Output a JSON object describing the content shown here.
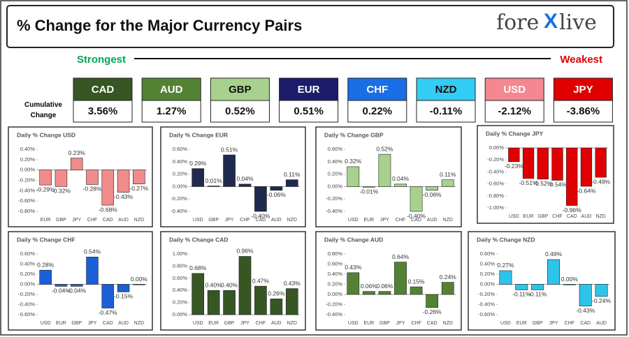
{
  "header": {
    "title": "% Change for the Major Currency Pairs",
    "logo": {
      "left": "fore",
      "mark": "X",
      "right": "live"
    }
  },
  "strength": {
    "strongest": "Strongest",
    "weakest": "Weakest",
    "label": "Cumulative Change",
    "currencies": [
      {
        "name": "CAD",
        "value": "3.56%",
        "color": "#375623"
      },
      {
        "name": "AUD",
        "value": "1.27%",
        "color": "#548235"
      },
      {
        "name": "GBP",
        "value": "0.52%",
        "color": "#a9d18e"
      },
      {
        "name": "EUR",
        "value": "0.51%",
        "color": "#1c1c6b"
      },
      {
        "name": "CHF",
        "value": "0.22%",
        "color": "#1a6ee6"
      },
      {
        "name": "NZD",
        "value": "-0.11%",
        "color": "#33ccf5"
      },
      {
        "name": "USD",
        "value": "-2.12%",
        "color": "#f4878f"
      },
      {
        "name": "JPY",
        "value": "-3.86%",
        "color": "#e00000"
      }
    ]
  },
  "chart_data": [
    {
      "type": "bar",
      "title": "Daily % Change USD",
      "color": "#f28b8b",
      "categories": [
        "EUR",
        "GBP",
        "JPY",
        "CHF",
        "CAD",
        "AUD",
        "NZD"
      ],
      "values": [
        -0.29,
        -0.32,
        0.23,
        -0.28,
        -0.68,
        -0.43,
        -0.27
      ],
      "value_labels": [
        "-0.29%",
        "-0.32%",
        "0.23%",
        "-0.28%",
        "-0.68%",
        "-0.43%",
        "-0.27%"
      ],
      "ylim": [
        -0.8,
        0.4
      ],
      "yticks": [
        {
          "value": 0.4,
          "label": "0.40%"
        },
        {
          "value": 0.2,
          "label": "0.20%"
        },
        {
          "value": 0,
          "label": "0.00%"
        },
        {
          "value": -0.2,
          "label": "-0.20%"
        },
        {
          "value": -0.4,
          "label": "-0.40%"
        },
        {
          "value": -0.6,
          "label": "-0.60%"
        },
        {
          "value": -0.8,
          "label": "-0.80%"
        }
      ]
    },
    {
      "type": "bar",
      "title": "Daily % Change EUR",
      "color": "#1f2a4f",
      "categories": [
        "USD",
        "GBP",
        "JPY",
        "CHF",
        "CAD",
        "AUD",
        "NZD"
      ],
      "values": [
        0.29,
        0.01,
        0.51,
        0.04,
        -0.4,
        -0.06,
        0.11
      ],
      "value_labels": [
        "0.29%",
        "0.01%",
        "0.51%",
        "0.04%",
        "-0.40%",
        "-0.06%",
        "0.11%"
      ],
      "ylim": [
        -0.4,
        0.6
      ],
      "yticks": [
        {
          "value": 0.6,
          "label": "0.60%"
        },
        {
          "value": 0.4,
          "label": "0.40%"
        },
        {
          "value": 0.2,
          "label": "0.20%"
        },
        {
          "value": 0,
          "label": "0.00%"
        },
        {
          "value": -0.2,
          "label": "-0.20%"
        },
        {
          "value": -0.4,
          "label": "-0.40%"
        }
      ]
    },
    {
      "type": "bar",
      "title": "Daily % Change GBP",
      "color": "#a9d18e",
      "categories": [
        "USD",
        "EUR",
        "JPY",
        "CHF",
        "CAD",
        "AUD",
        "NZD"
      ],
      "values": [
        0.32,
        -0.01,
        0.52,
        0.04,
        -0.4,
        -0.06,
        0.11
      ],
      "value_labels": [
        "0.32%",
        "-0.01%",
        "0.52%",
        "0.04%",
        "-0.40%",
        "-0.06%",
        "0.11%"
      ],
      "ylim": [
        -0.4,
        0.6
      ],
      "yticks": [
        {
          "value": 0.6,
          "label": "0.60%"
        },
        {
          "value": 0.4,
          "label": "0.40%"
        },
        {
          "value": 0.2,
          "label": "0.20%"
        },
        {
          "value": 0,
          "label": "0.00%"
        },
        {
          "value": -0.2,
          "label": "-0.20%"
        },
        {
          "value": -0.4,
          "label": "-0.40%"
        }
      ]
    },
    {
      "type": "bar",
      "title": "Daily % Change JPY",
      "color": "#e00000",
      "categories": [
        "USD",
        "EUR",
        "GBP",
        "CHF",
        "CAD",
        "AUD",
        "NZD"
      ],
      "values": [
        -0.23,
        -0.51,
        -0.52,
        -0.54,
        -0.96,
        -0.64,
        -0.49
      ],
      "value_labels": [
        "-0.23%",
        "-0.51%",
        "-0.52%",
        "-0.54%",
        "-0.96%",
        "-0.64%",
        "-0.49%"
      ],
      "ylim": [
        -1.0,
        0
      ],
      "yticks": [
        {
          "value": 0,
          "label": "0.00%"
        },
        {
          "value": -0.2,
          "label": "-0.20%"
        },
        {
          "value": -0.4,
          "label": "-0.40%"
        },
        {
          "value": -0.6,
          "label": "-0.60%"
        },
        {
          "value": -0.8,
          "label": "-0.80%"
        },
        {
          "value": -1.0,
          "label": "-1.00%"
        }
      ]
    },
    {
      "type": "bar",
      "title": "Daily % Change CHF",
      "color": "#1a5fd8",
      "categories": [
        "USD",
        "EUR",
        "GBP",
        "JPY",
        "CAD",
        "AUD",
        "NZD"
      ],
      "values": [
        0.28,
        -0.04,
        -0.04,
        0.54,
        -0.47,
        -0.15,
        0.0
      ],
      "value_labels": [
        "0.28%",
        "-0.04%",
        "-0.04%",
        "0.54%",
        "-0.47%",
        "-0.15%",
        "0.00%"
      ],
      "ylim": [
        -0.6,
        0.6
      ],
      "yticks": [
        {
          "value": 0.6,
          "label": "0.60%"
        },
        {
          "value": 0.4,
          "label": "0.40%"
        },
        {
          "value": 0.2,
          "label": "0.20%"
        },
        {
          "value": 0,
          "label": "0.00%"
        },
        {
          "value": -0.2,
          "label": "-0.20%"
        },
        {
          "value": -0.4,
          "label": "-0.40%"
        },
        {
          "value": -0.6,
          "label": "-0.60%"
        }
      ]
    },
    {
      "type": "bar",
      "title": "Daily % Change CAD",
      "color": "#375623",
      "categories": [
        "USD",
        "EUR",
        "GBP",
        "JPY",
        "CHF",
        "AUD",
        "NZD"
      ],
      "values": [
        0.68,
        0.4,
        0.4,
        0.96,
        0.47,
        0.26,
        0.43
      ],
      "value_labels": [
        "0.68%",
        "0.40%",
        "0.40%",
        "0.96%",
        "0.47%",
        "0.26%",
        "0.43%"
      ],
      "ylim": [
        0,
        1.0
      ],
      "yticks": [
        {
          "value": 1.0,
          "label": "1.00%"
        },
        {
          "value": 0.8,
          "label": "0.80%"
        },
        {
          "value": 0.6,
          "label": "0.60%"
        },
        {
          "value": 0.4,
          "label": "0.40%"
        },
        {
          "value": 0.2,
          "label": "0.20%"
        },
        {
          "value": 0,
          "label": "0.00%"
        }
      ]
    },
    {
      "type": "bar",
      "title": "Daily % Change AUD",
      "color": "#548235",
      "categories": [
        "USD",
        "EUR",
        "GBP",
        "JPY",
        "CHF",
        "CAD",
        "NZD"
      ],
      "values": [
        0.43,
        0.06,
        0.06,
        0.64,
        0.15,
        -0.26,
        0.24
      ],
      "value_labels": [
        "0.43%",
        "0.06%",
        "0.06%",
        "0.64%",
        "0.15%",
        "-0.26%",
        "0.24%"
      ],
      "ylim": [
        -0.4,
        0.8
      ],
      "yticks": [
        {
          "value": 0.8,
          "label": "0.80%"
        },
        {
          "value": 0.6,
          "label": "0.60%"
        },
        {
          "value": 0.4,
          "label": "0.40%"
        },
        {
          "value": 0.2,
          "label": "0.20%"
        },
        {
          "value": 0,
          "label": "0.00%"
        },
        {
          "value": -0.2,
          "label": "-0.20%"
        },
        {
          "value": -0.4,
          "label": "-0.40%"
        }
      ]
    },
    {
      "type": "bar",
      "title": "Daily % Change NZD",
      "color": "#2ec4ea",
      "categories": [
        "USD",
        "EUR",
        "GBP",
        "JPY",
        "CHF",
        "CAD",
        "AUD"
      ],
      "values": [
        0.27,
        -0.11,
        -0.11,
        0.49,
        0.0,
        -0.43,
        -0.24
      ],
      "value_labels": [
        "0.27%",
        "-0.11%",
        "-0.11%",
        "0.49%",
        "0.00%",
        "-0.43%",
        "-0.24%"
      ],
      "ylim": [
        -0.6,
        0.6
      ],
      "yticks": [
        {
          "value": 0.6,
          "label": "0.60%"
        },
        {
          "value": 0.4,
          "label": "0.40%"
        },
        {
          "value": 0.2,
          "label": "0.20%"
        },
        {
          "value": 0,
          "label": "0.00%"
        },
        {
          "value": -0.2,
          "label": "-0.20%"
        },
        {
          "value": -0.4,
          "label": "-0.40%"
        },
        {
          "value": -0.6,
          "label": "-0.60%"
        }
      ]
    }
  ]
}
